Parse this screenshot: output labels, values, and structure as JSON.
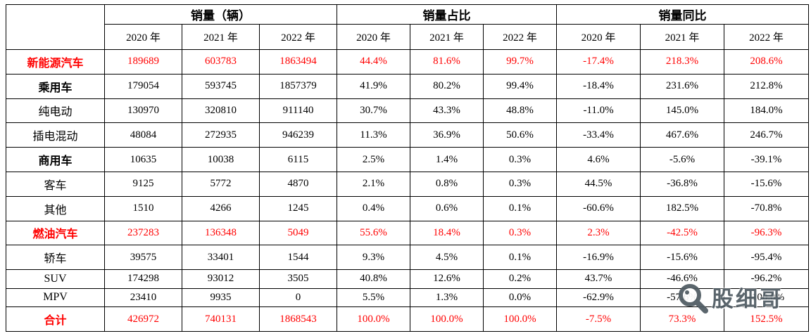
{
  "chart_data": {
    "type": "table",
    "column_groups": [
      "销量（辆）",
      "销量占比",
      "销量同比"
    ],
    "years": [
      "2020 年",
      "2021 年",
      "2022 年"
    ],
    "corner_label": "",
    "rows": [
      {
        "label": "新能源汽车",
        "red": true,
        "bold": true,
        "values": [
          "189689",
          "603783",
          "1863494",
          "44.4%",
          "81.6%",
          "99.7%",
          "-17.4%",
          "218.3%",
          "208.6%"
        ]
      },
      {
        "label": "乘用车",
        "red": false,
        "bold": true,
        "values": [
          "179054",
          "593745",
          "1857379",
          "41.9%",
          "80.2%",
          "99.4%",
          "-18.4%",
          "231.6%",
          "212.8%"
        ]
      },
      {
        "label": "纯电动",
        "red": false,
        "bold": false,
        "values": [
          "130970",
          "320810",
          "911140",
          "30.7%",
          "43.3%",
          "48.8%",
          "-11.0%",
          "145.0%",
          "184.0%"
        ]
      },
      {
        "label": "插电混动",
        "red": false,
        "bold": false,
        "values": [
          "48084",
          "272935",
          "946239",
          "11.3%",
          "36.9%",
          "50.6%",
          "-33.4%",
          "467.6%",
          "246.7%"
        ]
      },
      {
        "label": "商用车",
        "red": false,
        "bold": true,
        "values": [
          "10635",
          "10038",
          "6115",
          "2.5%",
          "1.4%",
          "0.3%",
          "4.6%",
          "-5.6%",
          "-39.1%"
        ]
      },
      {
        "label": "客车",
        "red": false,
        "bold": false,
        "values": [
          "9125",
          "5772",
          "4870",
          "2.1%",
          "0.8%",
          "0.3%",
          "44.5%",
          "-36.8%",
          "-15.6%"
        ]
      },
      {
        "label": "其他",
        "red": false,
        "bold": false,
        "values": [
          "1510",
          "4266",
          "1245",
          "0.4%",
          "0.6%",
          "0.1%",
          "-60.6%",
          "182.5%",
          "-70.8%"
        ]
      },
      {
        "label": "燃油汽车",
        "red": true,
        "bold": true,
        "values": [
          "237283",
          "136348",
          "5049",
          "55.6%",
          "18.4%",
          "0.3%",
          "2.3%",
          "-42.5%",
          "-96.3%"
        ]
      },
      {
        "label": "轿车",
        "red": false,
        "bold": false,
        "values": [
          "39575",
          "33401",
          "1544",
          "9.3%",
          "4.5%",
          "0.1%",
          "-16.9%",
          "-15.6%",
          "-95.4%"
        ]
      },
      {
        "label": "SUV",
        "red": false,
        "bold": false,
        "values": [
          "174298",
          "93012",
          "3505",
          "40.8%",
          "12.6%",
          "0.2%",
          "43.7%",
          "-46.6%",
          "-96.2%"
        ]
      },
      {
        "label": "MPV",
        "red": false,
        "bold": false,
        "values": [
          "23410",
          "9935",
          "0",
          "5.5%",
          "1.3%",
          "0.0%",
          "-62.9%",
          "-57.6%",
          "-100.0%"
        ]
      },
      {
        "label": "合计",
        "red": true,
        "bold": true,
        "values": [
          "426972",
          "740131",
          "1868543",
          "100.0%",
          "100.0%",
          "100.0%",
          "-7.5%",
          "73.3%",
          "152.5%"
        ]
      }
    ]
  },
  "watermark": {
    "text": "股细哥"
  },
  "colors": {
    "accent_red": "#ff0000",
    "border": "#000000",
    "watermark_gray": "#4f5b62",
    "background": "#ffffff"
  }
}
